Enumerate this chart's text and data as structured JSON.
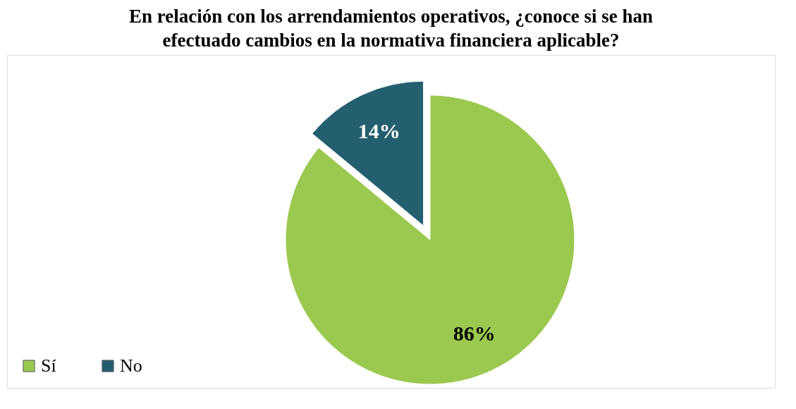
{
  "chart_data": {
    "type": "pie",
    "title": "En relación con los arrendamientos operativos, ¿conoce si se han efectuado cambios en la normativa financiera aplicable?",
    "categories": [
      "Sí",
      "No"
    ],
    "values": [
      86,
      14
    ],
    "colors": [
      "#9bc84f",
      "#245f70"
    ],
    "value_labels": [
      "86%",
      "14%"
    ],
    "legend": "bottom left"
  }
}
